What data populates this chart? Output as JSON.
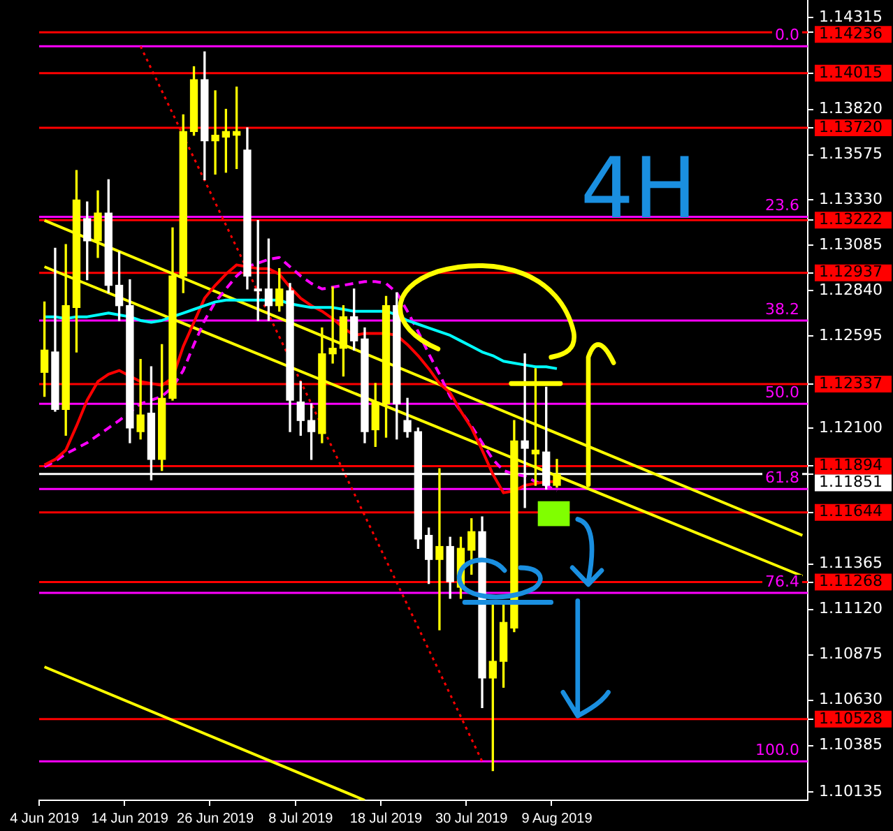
{
  "chart_data": {
    "type": "candlestick",
    "categories": [
      "4 Jun 2019",
      null,
      null,
      null,
      null,
      null,
      null,
      null,
      "14 Jun 2019",
      null,
      null,
      null,
      null,
      null,
      null,
      null,
      "26 Jun 2019",
      null,
      null,
      null,
      null,
      null,
      null,
      null,
      "8 Jul 2019",
      null,
      null,
      null,
      null,
      null,
      null,
      null,
      "18 Jul 2019",
      null,
      null,
      null,
      null,
      null,
      null,
      null,
      "30 Jul 2019",
      null,
      null,
      null,
      null,
      null,
      null,
      null,
      "9 Aug 2019",
      null,
      null,
      null,
      null,
      null,
      null,
      null,
      null,
      null,
      null,
      null,
      null,
      null,
      null,
      null,
      null,
      null,
      null,
      null,
      null,
      null,
      null,
      null
    ],
    "ohlc": [
      [
        1.124,
        1.1278,
        1.1227,
        1.1252
      ],
      [
        1.1251,
        1.1307,
        1.1219,
        1.122
      ],
      [
        1.122,
        1.1309,
        1.1206,
        1.1276
      ],
      [
        1.1275,
        1.1349,
        1.1251,
        1.1333
      ],
      [
        1.1323,
        1.1332,
        1.129,
        1.1311
      ],
      [
        1.1311,
        1.1338,
        1.1302,
        1.1326
      ],
      [
        1.1326,
        1.1344,
        1.1283,
        1.1287
      ],
      [
        1.1287,
        1.1305,
        1.1268,
        1.1276
      ],
      [
        1.1276,
        1.129,
        1.1202,
        1.121
      ],
      [
        1.1208,
        1.1247,
        1.1204,
        1.1217
      ],
      [
        1.1218,
        1.1243,
        1.1182,
        1.1193
      ],
      [
        1.1193,
        1.1255,
        1.1187,
        1.1226
      ],
      [
        1.1226,
        1.1318,
        1.1225,
        1.1292
      ],
      [
        1.1292,
        1.1379,
        1.1283,
        1.137
      ],
      [
        1.137,
        1.1405,
        1.1368,
        1.1398
      ],
      [
        1.1398,
        1.1413,
        1.1344,
        1.1365
      ],
      [
        1.1365,
        1.1392,
        1.1347,
        1.1368
      ],
      [
        1.1367,
        1.1382,
        1.1348,
        1.137
      ],
      [
        1.1368,
        1.1394,
        1.135,
        1.137
      ],
      [
        1.136,
        1.1372,
        1.1285,
        1.1292
      ],
      [
        1.1285,
        1.1322,
        1.1268,
        1.1284
      ],
      [
        1.1285,
        1.1312,
        1.1268,
        1.1276
      ],
      [
        1.1276,
        1.1296,
        1.1273,
        1.1285
      ],
      [
        1.1284,
        1.1288,
        1.1208,
        1.1225
      ],
      [
        1.1224,
        1.1235,
        1.1206,
        1.1214
      ],
      [
        1.1214,
        1.1223,
        1.1193,
        1.1208
      ],
      [
        1.1207,
        1.1264,
        1.1202,
        1.125
      ],
      [
        1.125,
        1.1286,
        1.1245,
        1.1253
      ],
      [
        1.1253,
        1.1276,
        1.1238,
        1.127
      ],
      [
        1.127,
        1.1285,
        1.1252,
        1.1257
      ],
      [
        1.1258,
        1.1264,
        1.1202,
        1.1208
      ],
      [
        1.1209,
        1.1234,
        1.12,
        1.1224
      ],
      [
        1.1223,
        1.1281,
        1.1205,
        1.1276
      ],
      [
        1.1276,
        1.1283,
        1.1204,
        1.1223
      ],
      [
        1.1214,
        1.1226,
        1.1205,
        1.1208
      ],
      [
        1.1208,
        1.121,
        1.1145,
        1.115
      ],
      [
        1.1152,
        1.1156,
        1.1126,
        1.1139
      ],
      [
        1.1139,
        1.1188,
        1.1101,
        1.1146
      ],
      [
        1.1146,
        1.1151,
        1.1118,
        1.1127
      ],
      [
        1.1124,
        1.1151,
        1.1118,
        1.1145
      ],
      [
        1.1144,
        1.1161,
        1.1131,
        1.1154
      ],
      [
        1.1154,
        1.1162,
        1.1059,
        1.1075
      ],
      [
        1.1075,
        1.1115,
        1.1025,
        1.1084
      ],
      [
        1.1084,
        1.1115,
        1.107,
        1.1105
      ],
      [
        1.1102,
        1.1214,
        1.11,
        1.1203
      ],
      [
        1.1203,
        1.125,
        1.1167,
        1.1199
      ],
      [
        1.1196,
        1.1242,
        1.1179,
        1.1198
      ],
      [
        1.1197,
        1.1232,
        1.1177,
        1.1179
      ],
      [
        1.1179,
        1.1193,
        1.1178,
        1.1185
      ],
      null,
      null,
      null,
      null,
      null,
      null,
      null,
      null,
      null,
      null,
      null,
      null,
      null,
      null,
      null,
      null,
      null,
      null,
      null,
      null,
      null,
      null,
      null
    ],
    "colors": [
      "#ffff00",
      "#ffffff",
      "#ffff00",
      "#ffff00",
      "#ffffff",
      "#ffff00",
      "#ffffff",
      "#ffffff",
      "#ffffff",
      "#ffff00",
      "#ffffff",
      "#ffff00",
      "#ffff00",
      "#ffff00",
      "#ffff00",
      "#ffffff",
      "#ffff00",
      "#ffff00",
      "#ffff00",
      "#ffffff",
      "#ffffff",
      "#ffffff",
      "#ffff00",
      "#ffffff",
      "#ffffff",
      "#ffffff",
      "#ffff00",
      "#ffff00",
      "#ffff00",
      "#ffffff",
      "#ffffff",
      "#ffff00",
      "#ffff00",
      "#ffffff",
      "#ffffff",
      "#ffffff",
      "#ffffff",
      "#ffff00",
      "#ffffff",
      "#ffff00",
      "#ffff00",
      "#ffffff",
      "#ffff00",
      "#ffff00",
      "#ffff00",
      "#ffffff",
      "#ffff00",
      "#ffffff",
      "#ffff00",
      null,
      null,
      null,
      null,
      null,
      null,
      null,
      null,
      null,
      null,
      null,
      null,
      null,
      null,
      null,
      null,
      null,
      null,
      null,
      null,
      null,
      null,
      null
    ],
    "series": [
      {
        "type": "line",
        "color": "#00ffff",
        "values": [
          1.127,
          1.127,
          1.1269,
          1.127,
          1.127,
          1.1271,
          1.1272,
          1.1271,
          1.127,
          1.1268,
          1.1267,
          1.1268,
          1.127,
          1.1272,
          1.1274,
          1.1276,
          1.1278,
          1.1279,
          1.1279,
          1.1279,
          1.1279,
          1.1279,
          1.1279,
          1.1277,
          1.1276,
          1.1275,
          1.1275,
          1.1275,
          1.1274,
          1.1273,
          1.1273,
          1.1273,
          1.1273,
          1.1271,
          1.1268,
          1.1266,
          1.1264,
          1.1262,
          1.126,
          1.1257,
          1.1254,
          1.1251,
          1.1249,
          1.1246,
          1.1245,
          1.1244,
          1.1243,
          1.1243,
          1.1242,
          null,
          null,
          null,
          null,
          null,
          null,
          null,
          null,
          null,
          null,
          null,
          null,
          null,
          null,
          null,
          null,
          null,
          null,
          null,
          null,
          null,
          null,
          null
        ]
      },
      {
        "type": "line",
        "color": "#ff0000",
        "values": [
          1.119,
          1.1193,
          1.1198,
          1.1211,
          1.1225,
          1.1235,
          1.1239,
          1.1241,
          1.1238,
          1.1235,
          1.1234,
          1.1233,
          1.1237,
          1.1254,
          1.1267,
          1.128,
          1.1287,
          1.1293,
          1.1298,
          1.1297,
          1.1296,
          1.1296,
          1.1293,
          1.1286,
          1.128,
          1.1276,
          1.1273,
          1.1269,
          1.1264,
          1.126,
          1.1261,
          1.1261,
          1.1261,
          1.126,
          1.1255,
          1.1249,
          1.1242,
          1.1234,
          1.1229,
          1.1219,
          1.121,
          1.1198,
          1.1185,
          1.1175,
          1.1176,
          1.1179,
          1.118,
          1.1181,
          1.1181,
          null,
          null,
          null,
          null,
          null,
          null,
          null,
          null,
          null,
          null,
          null,
          null,
          null,
          null,
          null,
          null,
          null,
          null,
          null,
          null,
          null,
          null,
          null
        ]
      },
      {
        "type": "line",
        "color": "#ff00ff",
        "line_style": "dashed",
        "values": [
          1.1189,
          1.1192,
          1.1196,
          1.1199,
          1.1202,
          1.1206,
          1.121,
          1.1214,
          null,
          1.1223,
          1.1225,
          1.1227,
          1.1232,
          1.1241,
          1.1255,
          1.1268,
          1.1278,
          1.1285,
          1.1292,
          1.1297,
          1.1299,
          1.1301,
          1.1302,
          1.1297,
          1.1292,
          1.1288,
          1.1285,
          1.1286,
          1.1287,
          1.1288,
          1.1289,
          1.1289,
          1.1288,
          1.1283,
          1.1273,
          1.1262,
          1.125,
          1.1239,
          1.1227,
          1.1219,
          1.1211,
          1.1202,
          1.1193,
          1.1187,
          1.1185,
          1.1184,
          1.1181,
          1.1179,
          1.1176,
          null,
          null,
          null,
          null,
          null,
          null,
          null,
          null,
          null,
          null,
          null,
          null,
          null,
          null,
          null,
          null,
          null,
          null,
          null,
          null,
          null,
          null,
          null
        ]
      },
      {
        "type": "line",
        "color": "#ffff00",
        "values": [
          1.1322,
          null,
          null,
          null,
          null,
          null,
          null,
          null,
          null,
          null,
          null,
          null,
          null,
          null,
          null,
          null,
          null,
          null,
          null,
          null,
          null,
          null,
          null,
          null,
          null,
          null,
          null,
          null,
          null,
          null,
          null,
          null,
          null,
          null,
          null,
          null,
          null,
          null,
          null,
          null,
          null,
          null,
          null,
          null,
          null,
          null,
          null,
          null,
          null,
          null,
          null,
          null,
          null,
          null,
          null,
          null,
          null,
          null,
          null,
          null,
          null,
          null,
          null,
          null,
          null,
          null,
          null,
          null,
          null,
          null,
          null,
          1.1152
        ]
      },
      {
        "type": "line",
        "color": "#ffff00",
        "values": [
          1.1297,
          null,
          null,
          null,
          null,
          null,
          null,
          null,
          null,
          null,
          null,
          null,
          null,
          null,
          null,
          null,
          null,
          null,
          null,
          null,
          null,
          null,
          null,
          null,
          null,
          null,
          null,
          null,
          null,
          null,
          null,
          null,
          null,
          null,
          null,
          null,
          null,
          null,
          null,
          null,
          null,
          null,
          null,
          null,
          null,
          null,
          null,
          null,
          null,
          null,
          null,
          null,
          null,
          null,
          null,
          null,
          null,
          null,
          null,
          null,
          null,
          null,
          null,
          null,
          null,
          null,
          null,
          null,
          null,
          null,
          null,
          1.113
        ]
      },
      {
        "type": "line",
        "color": "#ffff00",
        "values": [
          1.1081,
          null,
          null,
          null,
          null,
          null,
          null,
          null,
          null,
          null,
          null,
          null,
          null,
          null,
          null,
          null,
          null,
          null,
          null,
          null,
          null,
          null,
          null,
          null,
          null,
          null,
          null,
          null,
          null,
          null,
          1.1009,
          null,
          null,
          null,
          null,
          null,
          null,
          null,
          null,
          null,
          null,
          null,
          null,
          null,
          null,
          null,
          null,
          null,
          null,
          null,
          null,
          null,
          null,
          null,
          null,
          null,
          null,
          null,
          null,
          null,
          null,
          null,
          null,
          null,
          null,
          null,
          null,
          null,
          null,
          null,
          null,
          null
        ]
      },
      {
        "type": "line",
        "color": "#ff0000",
        "line_style": "dotted",
        "values": [
          null,
          null,
          null,
          null,
          null,
          null,
          null,
          null,
          null,
          1.1416,
          null,
          null,
          null,
          null,
          null,
          null,
          null,
          null,
          null,
          null,
          null,
          null,
          null,
          null,
          null,
          null,
          null,
          null,
          null,
          null,
          null,
          null,
          null,
          null,
          null,
          null,
          null,
          null,
          null,
          null,
          null,
          1.103,
          null,
          null,
          null,
          null,
          null,
          null,
          null,
          null,
          null,
          null,
          null,
          null,
          null,
          null,
          null,
          null,
          null,
          null,
          null,
          null,
          null,
          null,
          null,
          null,
          null,
          null,
          null,
          null,
          null,
          null
        ]
      }
    ],
    "ylim": [
      1.1009,
      1.1441
    ],
    "yticks": [
      1.14315,
      1.14236,
      1.14015,
      {
        "value": 1.1382,
        "label": "1.13820"
      },
      {
        "value": 1.1372,
        "label": "1.13720"
      },
      1.13575,
      {
        "value": 1.1333,
        "label": "1.13330"
      },
      1.13222,
      1.13085,
      1.12937,
      {
        "value": 1.1284,
        "label": "1.12840"
      },
      1.12595,
      1.12337,
      {
        "value": 1.121,
        "label": "1.12100"
      },
      1.11894,
      1.11851,
      1.11644,
      1.11365,
      1.11268,
      {
        "value": 1.1112,
        "label": "1.11120"
      },
      1.10875,
      {
        "value": 1.1063,
        "label": "1.10630"
      },
      1.10528,
      1.10385,
      1.10135
    ],
    "ref_lines": [
      {
        "axis": "y",
        "value": 1.14236,
        "color": "#ff0000"
      },
      {
        "axis": "y",
        "value": 1.14015,
        "color": "#ff0000"
      },
      {
        "axis": "y",
        "value": 1.1372,
        "color": "#ff0000"
      },
      {
        "axis": "y",
        "value": 1.13222,
        "color": "#ff0000"
      },
      {
        "axis": "y",
        "value": 1.12937,
        "color": "#ff0000"
      },
      {
        "axis": "y",
        "value": 1.12337,
        "color": "#ff0000"
      },
      {
        "axis": "y",
        "value": 1.11894,
        "color": "#ff0000"
      },
      {
        "axis": "y",
        "value": 1.11644,
        "color": "#ff0000"
      },
      {
        "axis": "y",
        "value": 1.11268,
        "color": "#ff0000"
      },
      {
        "axis": "y",
        "value": 1.10528,
        "color": "#ff0000"
      },
      {
        "axis": "y",
        "value": 1.11851,
        "color": "#ffffff"
      },
      {
        "axis": "y",
        "value": 1.1416,
        "color": "#ff00ff"
      },
      {
        "axis": "y",
        "value": 1.1324,
        "color": "#ff00ff"
      },
      {
        "axis": "y",
        "value": 1.1268,
        "color": "#ff00ff"
      },
      {
        "axis": "y",
        "value": 1.1223,
        "color": "#ff00ff"
      },
      {
        "axis": "y",
        "value": 1.1177,
        "color": "#ff00ff"
      },
      {
        "axis": "y",
        "value": 1.1121,
        "color": "#ff00ff"
      },
      {
        "axis": "y",
        "value": 1.103,
        "color": "#ff00ff"
      }
    ],
    "annotations": [
      "4H",
      {
        "text": "0.0",
        "y": 1.1416
      },
      {
        "text": "23.6",
        "y": 1.1324
      },
      {
        "text": "38.2",
        "y": 1.1268
      },
      {
        "text": "50.0",
        "y": 1.1223
      },
      {
        "text": "61.8",
        "y": 1.1177
      },
      {
        "text": "76.4",
        "y": 1.1121
      },
      {
        "text": "100.0",
        "y": 1.103
      }
    ],
    "legend": false,
    "grid": false,
    "marker": "none"
  }
}
